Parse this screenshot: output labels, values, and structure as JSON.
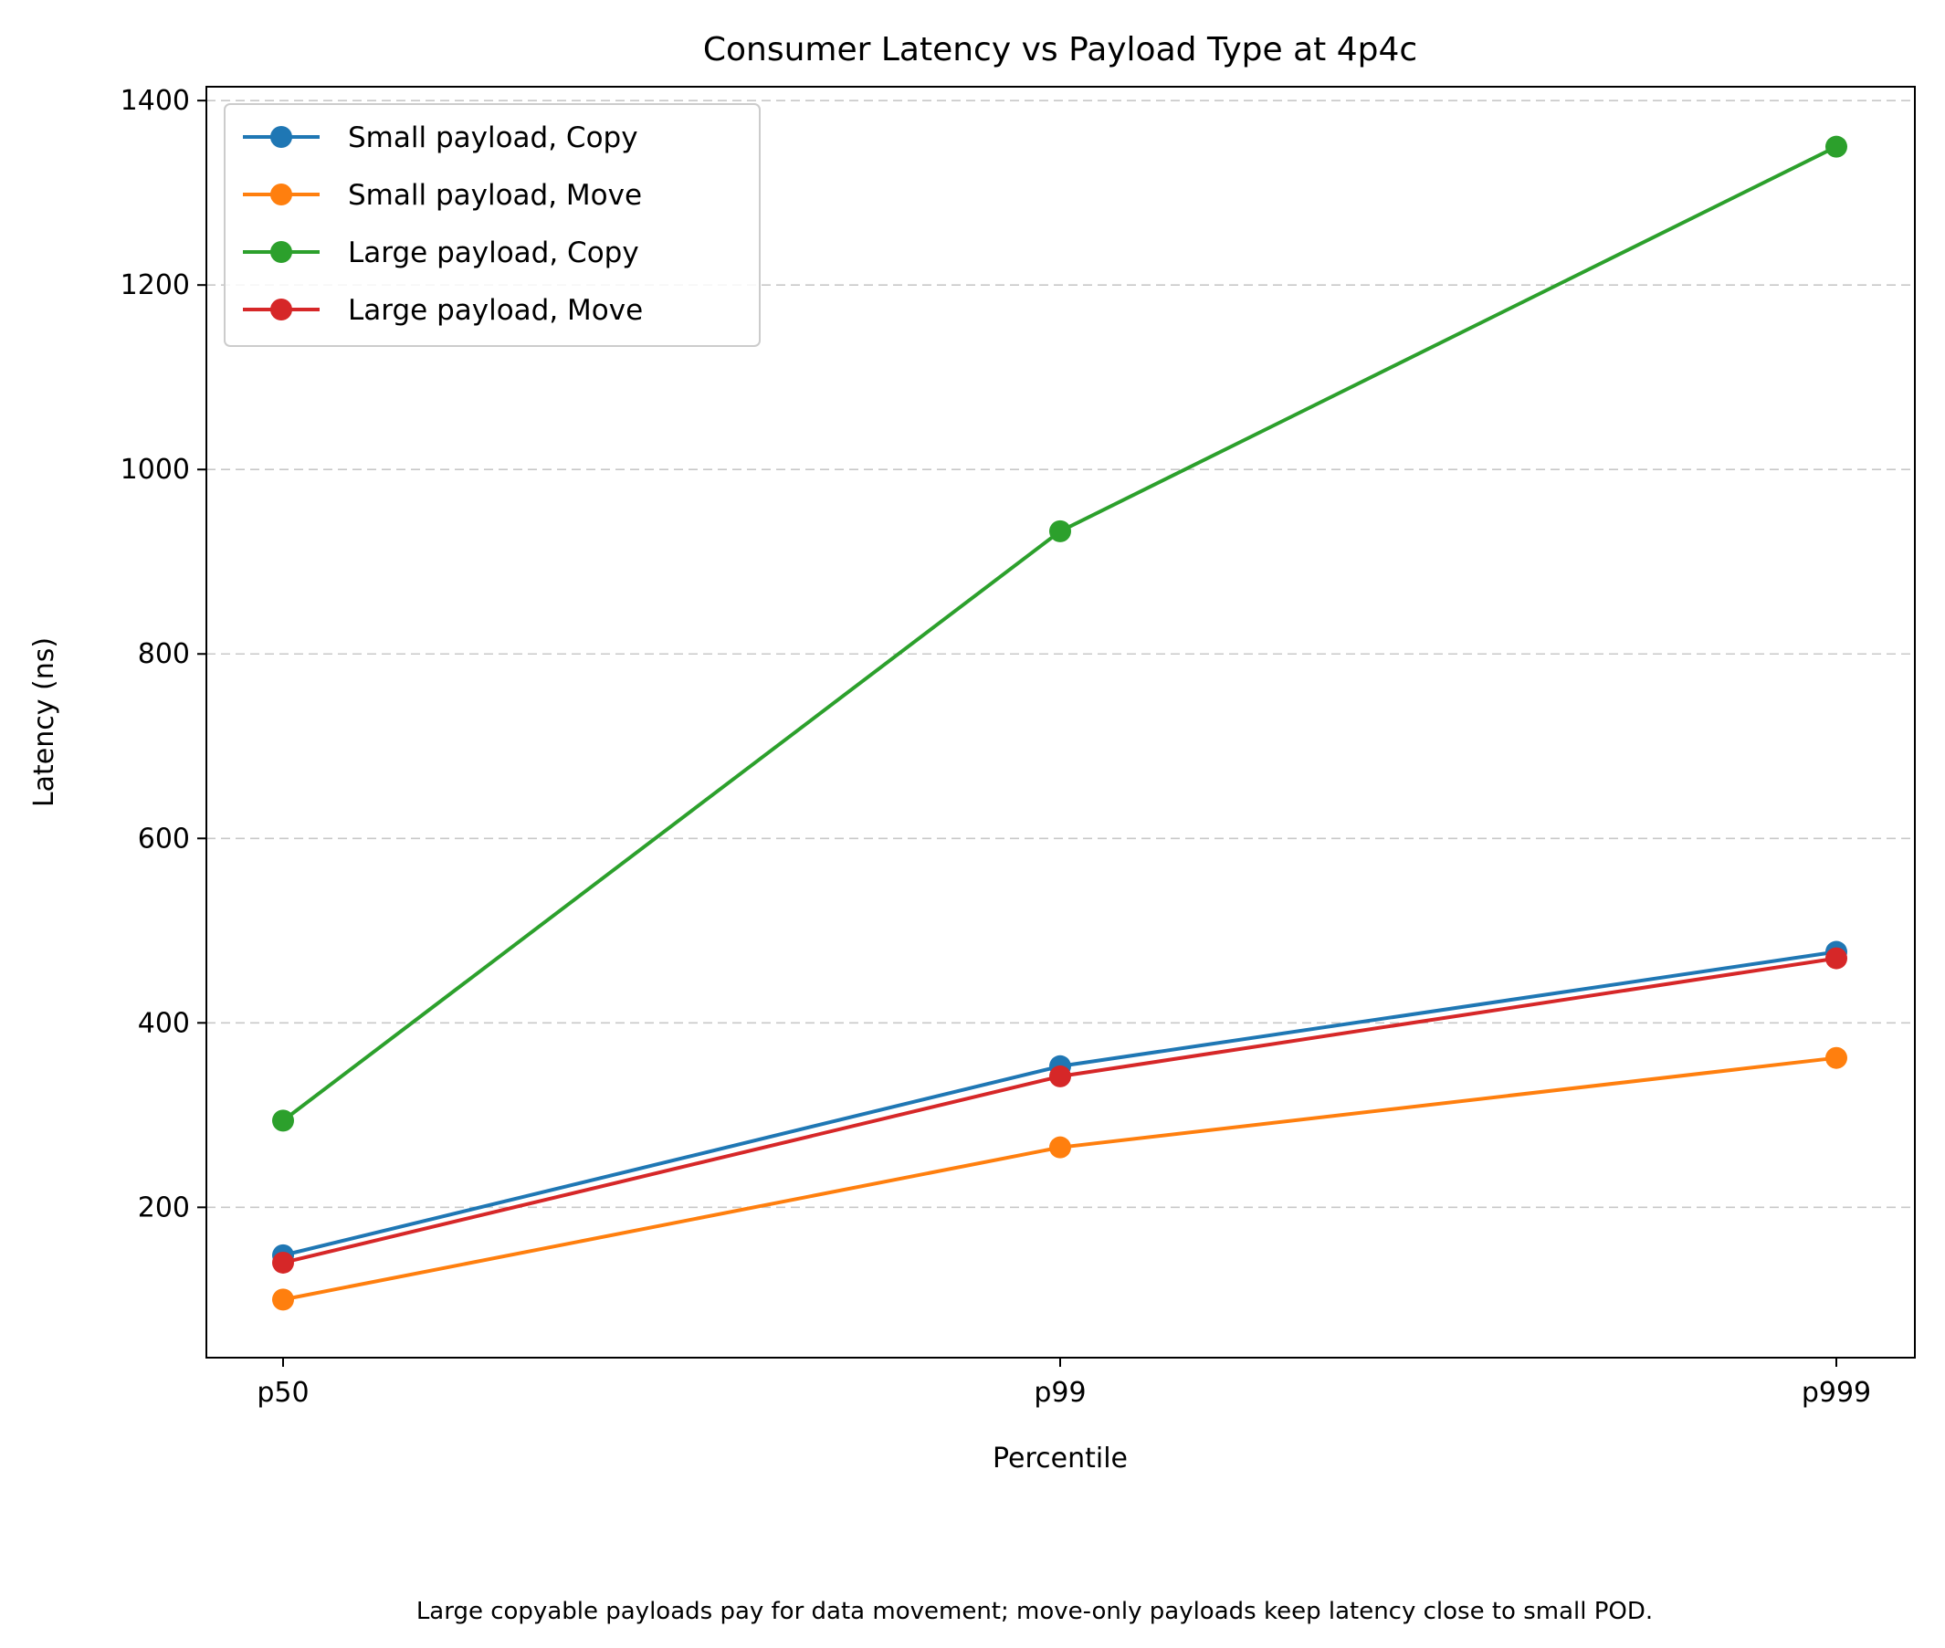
{
  "chart_data": {
    "type": "line",
    "title": "Consumer Latency vs Payload Type at 4p4c",
    "xlabel": "Percentile",
    "ylabel": "Latency (ns)",
    "categories": [
      "p50",
      "p99",
      "p999"
    ],
    "ylim": [
      37,
      1415
    ],
    "yticks": [
      200,
      400,
      600,
      800,
      1000,
      1200,
      1400
    ],
    "grid": "y-dashed",
    "legend_position": "top-left",
    "series": [
      {
        "name": "Small payload, Copy",
        "color": "#1f77b4",
        "values": [
          148,
          353,
          477
        ]
      },
      {
        "name": "Small payload, Move",
        "color": "#ff7f0e",
        "values": [
          100,
          265,
          362
        ]
      },
      {
        "name": "Large payload, Copy",
        "color": "#2ca02c",
        "values": [
          294,
          933,
          1350
        ]
      },
      {
        "name": "Large payload, Move",
        "color": "#d62728",
        "values": [
          140,
          342,
          470
        ]
      }
    ],
    "caption": "Large copyable payloads pay for data movement; move-only payloads keep latency close to small POD."
  }
}
